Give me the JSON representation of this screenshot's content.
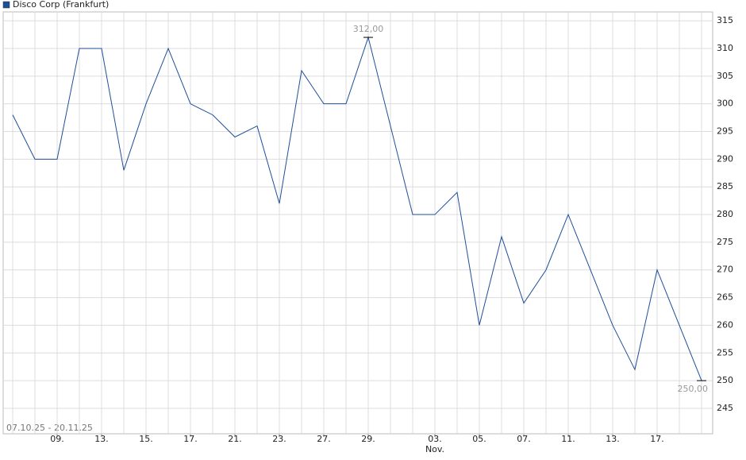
{
  "chart_data": {
    "type": "line",
    "series": [
      {
        "name": "Disco Corp (Frankfurt)",
        "color": "#1f4e99",
        "values": [
          298,
          290,
          290,
          310,
          310,
          288,
          300,
          310,
          300,
          298,
          294,
          296,
          282,
          306,
          300,
          300,
          312,
          296,
          280,
          280,
          284,
          260,
          276,
          264,
          270,
          280,
          270,
          260,
          252,
          270,
          260,
          250
        ],
        "value_labels": [
          null,
          null,
          null,
          null,
          null,
          null,
          null,
          null,
          null,
          null,
          null,
          null,
          null,
          null,
          null,
          null,
          "312,00",
          null,
          null,
          null,
          null,
          null,
          null,
          null,
          null,
          null,
          null,
          null,
          null,
          null,
          null,
          "250,00"
        ]
      }
    ],
    "categories": [
      null,
      null,
      "09.",
      null,
      "13.",
      null,
      "15.",
      null,
      "17.",
      null,
      "21.",
      null,
      "23.",
      null,
      "27.",
      null,
      "29.",
      null,
      null,
      "03.",
      null,
      "05.",
      null,
      "07.",
      null,
      "11.",
      null,
      "13.",
      null,
      "17.",
      null,
      null
    ],
    "month_label": "Nov.",
    "date_range": "07.10.25 - 20.11.25",
    "ylim": [
      240.4,
      316.6
    ],
    "yticks": [
      245,
      250,
      255,
      260,
      265,
      270,
      275,
      280,
      285,
      290,
      295,
      300,
      305,
      310,
      315
    ],
    "grid": true
  }
}
